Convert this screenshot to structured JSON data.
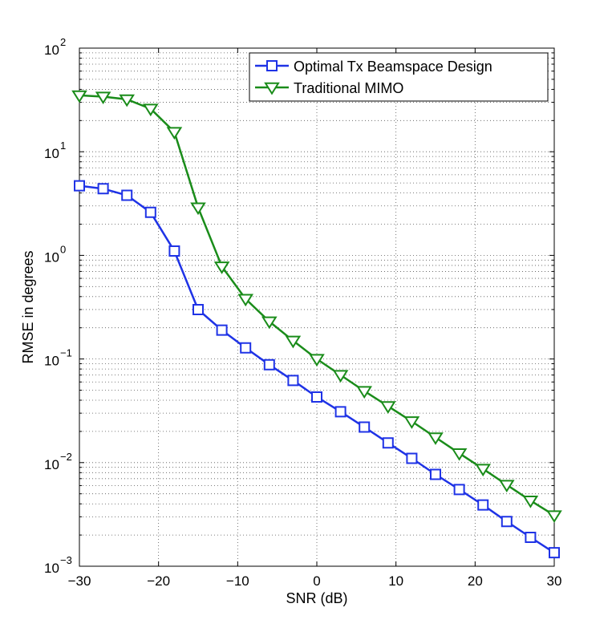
{
  "chart_data": {
    "type": "line",
    "title": "",
    "xlabel": "SNR (dB)",
    "ylabel": "RMSE in degrees",
    "xlim": [
      -30,
      30
    ],
    "ylim": [
      0.001,
      100
    ],
    "yscale": "log",
    "grid": true,
    "legend_position": "top-right",
    "x_ticks": [
      {
        "value": -30,
        "label": "−30"
      },
      {
        "value": -20,
        "label": "−20"
      },
      {
        "value": -10,
        "label": "−10"
      },
      {
        "value": 0,
        "label": "0"
      },
      {
        "value": 10,
        "label": "10"
      },
      {
        "value": 20,
        "label": "20"
      },
      {
        "value": 30,
        "label": "30"
      }
    ],
    "y_ticks": [
      {
        "value": 100,
        "base": "10",
        "exp": "2"
      },
      {
        "value": 10,
        "base": "10",
        "exp": "1"
      },
      {
        "value": 1,
        "base": "10",
        "exp": "0"
      },
      {
        "value": 0.1,
        "base": "10",
        "exp": "−1"
      },
      {
        "value": 0.01,
        "base": "10",
        "exp": "−2"
      },
      {
        "value": 0.001,
        "base": "10",
        "exp": "−3"
      }
    ],
    "x": [
      -30,
      -27,
      -24,
      -21,
      -18,
      -15,
      -12,
      -9,
      -6,
      -3,
      0,
      3,
      6,
      9,
      12,
      15,
      18,
      21,
      24,
      27,
      30
    ],
    "series": [
      {
        "name": "Optimal Tx Beamspace Design",
        "color": "#1f33e6",
        "marker": "square",
        "values": [
          4.7,
          4.4,
          3.8,
          2.6,
          1.1,
          0.3,
          0.19,
          0.128,
          0.088,
          0.062,
          0.043,
          0.031,
          0.022,
          0.0155,
          0.011,
          0.0077,
          0.0055,
          0.0039,
          0.0027,
          0.0019,
          0.00135
        ]
      },
      {
        "name": "Traditional MIMO",
        "color": "#1a8c1a",
        "marker": "triangle-down",
        "values": [
          35,
          34,
          32,
          26,
          15.5,
          2.9,
          0.78,
          0.38,
          0.23,
          0.15,
          0.1,
          0.07,
          0.049,
          0.035,
          0.025,
          0.0175,
          0.0123,
          0.0087,
          0.0061,
          0.0043,
          0.0031
        ]
      }
    ]
  }
}
